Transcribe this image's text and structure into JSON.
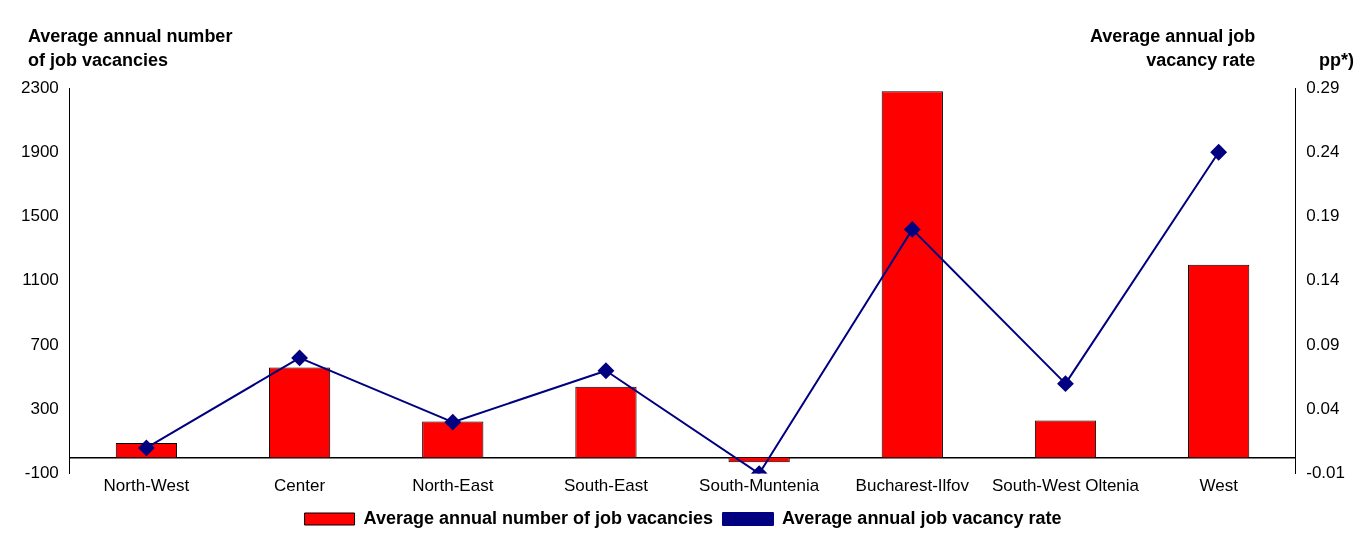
{
  "chart_data": {
    "type": "bar",
    "ylabel": "Average annual number of job vacancies",
    "y2label": "Average annual job vacancy rate",
    "annotations": [
      "pp*)"
    ],
    "categories": [
      "North-West",
      "Center",
      "North-East",
      "South-East",
      "South-Muntenia",
      "Bucharest-Ilfov",
      "South-West Oltenia",
      "West"
    ],
    "series": [
      {
        "name": "Average annual number of job vacancies",
        "color": "#ff0000",
        "values": [
          90,
          560,
          225,
          440,
          -30,
          2280,
          230,
          1200
        ]
      },
      {
        "name": "Average annual job vacancy rate",
        "type": "line",
        "axis": "y2",
        "color": "#000080",
        "marker": "diamond",
        "values": [
          0.01,
          0.08,
          0.03,
          0.07,
          -0.01,
          0.18,
          0.06,
          0.24
        ]
      }
    ],
    "ylim": [
      -100,
      2300
    ],
    "yticks": [
      -100,
      300,
      700,
      1100,
      1500,
      1900,
      2300
    ],
    "y2lim": [
      -0.01,
      0.29
    ],
    "y2ticks": [
      -0.01,
      0.04,
      0.09,
      0.14,
      0.19,
      0.24,
      0.29
    ],
    "grid": false,
    "legend": "bottom"
  }
}
